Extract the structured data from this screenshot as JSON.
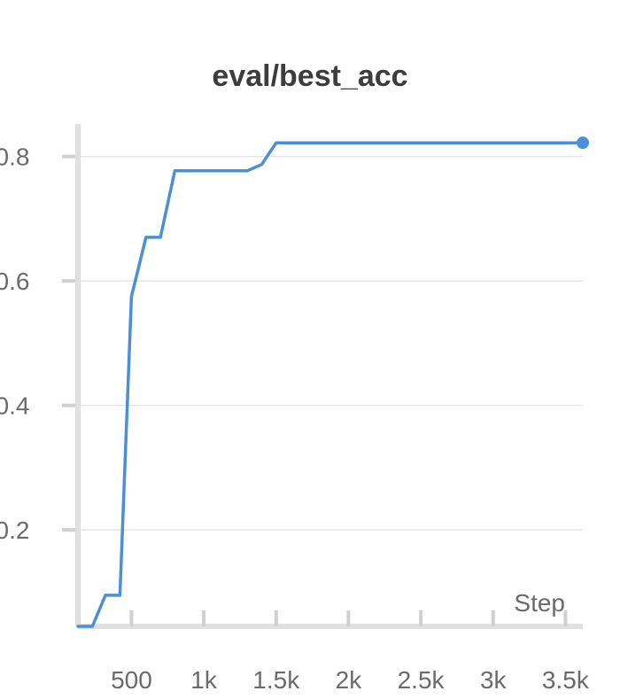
{
  "chart_data": {
    "type": "line",
    "title": "eval/best_acc",
    "xlabel": "Step",
    "ylabel": "",
    "xlim": [
      130,
      3620
    ],
    "ylim": [
      0.045,
      0.845
    ],
    "x_ticks": [
      500,
      1000,
      1500,
      2000,
      2500,
      3000,
      3500
    ],
    "x_tick_labels": [
      "500",
      "1k",
      "1.5k",
      "2k",
      "2.5k",
      "3k",
      "3.5k"
    ],
    "y_ticks": [
      0.2,
      0.4,
      0.6,
      0.8
    ],
    "y_tick_labels": [
      "0.2",
      "0.4",
      "0.6",
      "0.8"
    ],
    "grid": true,
    "legend": "none",
    "series": [
      {
        "color": "#4a90d9",
        "x": [
          130,
          230,
          320,
          420,
          500,
          600,
          700,
          800,
          900,
          1000,
          1100,
          1200,
          1300,
          1400,
          1500,
          1600,
          2000,
          2500,
          3000,
          3500,
          3620
        ],
        "y": [
          0.045,
          0.045,
          0.095,
          0.095,
          0.575,
          0.67,
          0.67,
          0.777,
          0.777,
          0.777,
          0.777,
          0.777,
          0.777,
          0.787,
          0.822,
          0.822,
          0.822,
          0.822,
          0.822,
          0.822,
          0.822
        ]
      }
    ]
  }
}
